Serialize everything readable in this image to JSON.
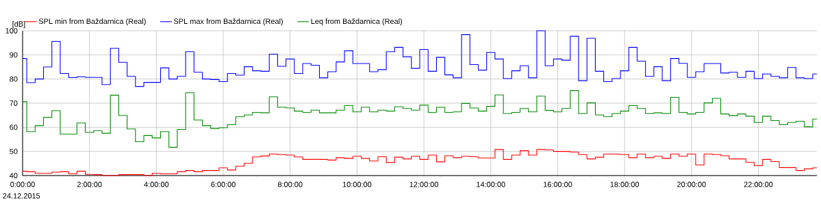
{
  "chart_data": {
    "type": "step",
    "ylabel": "[dB]",
    "annotations": [
      "24.12.2015"
    ],
    "x": [
      0,
      0.25,
      0.5,
      0.75,
      1,
      1.25,
      1.5,
      1.75,
      2,
      2.25,
      2.5,
      2.75,
      3,
      3.25,
      3.5,
      3.75,
      4,
      4.25,
      4.5,
      4.75,
      5,
      5.25,
      5.5,
      5.75,
      6,
      6.25,
      6.5,
      6.75,
      7,
      7.25,
      7.5,
      7.75,
      8,
      8.25,
      8.5,
      8.75,
      9,
      9.25,
      9.5,
      9.75,
      10,
      10.25,
      10.5,
      10.75,
      11,
      11.25,
      11.5,
      11.75,
      12,
      12.25,
      12.5,
      12.75,
      13,
      13.25,
      13.5,
      13.75,
      14,
      14.25,
      14.5,
      14.75,
      15,
      15.25,
      15.5,
      15.75,
      16,
      16.25,
      16.5,
      16.75,
      17,
      17.25,
      17.5,
      17.75,
      18,
      18.25,
      18.5,
      18.75,
      19,
      19.25,
      19.5,
      19.75,
      20,
      20.25,
      20.5,
      20.75,
      21,
      21.25,
      21.5,
      21.75,
      22,
      22.25,
      22.5,
      22.75,
      23,
      23.25,
      23.5,
      23.75
    ],
    "series": [
      {
        "name": "SPL min from Baždarnica (Real)",
        "color": "#ff0000",
        "values": [
          41.8,
          41.6,
          40.9,
          40.9,
          41.4,
          41.6,
          40.7,
          41.8,
          40.5,
          40.4,
          40.0,
          40.0,
          40.4,
          40.4,
          40.4,
          40.0,
          40.9,
          40.7,
          40.7,
          41.6,
          42.1,
          41.6,
          42.1,
          42.1,
          43.2,
          42.3,
          43.9,
          45.1,
          47.7,
          48.1,
          48.9,
          48.7,
          48.5,
          47.7,
          46.7,
          46.7,
          46.7,
          46.4,
          47.4,
          47.1,
          48.0,
          47.1,
          46.0,
          47.8,
          45.4,
          47.6,
          46.9,
          48.0,
          46.7,
          48.5,
          45.7,
          48.2,
          47.4,
          48.0,
          47.8,
          47.3,
          47.3,
          50.8,
          46.7,
          48.5,
          50.3,
          48.5,
          50.8,
          50.6,
          50.0,
          50.0,
          49.7,
          48.7,
          46.9,
          47.6,
          48.9,
          48.9,
          48.7,
          47.4,
          48.9,
          47.4,
          48.0,
          47.1,
          48.9,
          48.0,
          48.9,
          44.4,
          48.9,
          48.7,
          48.2,
          46.9,
          46.9,
          45.5,
          44.1,
          46.7,
          45.8,
          43.3,
          43.3,
          42.1,
          42.8,
          43.2
        ]
      },
      {
        "name": "SPL max from Baždarnica (Real)",
        "color": "#0000ff",
        "values": [
          88.5,
          78.5,
          80,
          85,
          95.6,
          82.3,
          80.6,
          80.9,
          80.7,
          80.7,
          77.7,
          92.7,
          86.9,
          81.1,
          76.9,
          78.6,
          78.6,
          84.6,
          80,
          81.1,
          91.3,
          82.8,
          80,
          79.8,
          78.9,
          82.3,
          81.6,
          85.1,
          83.4,
          83.2,
          90.3,
          85.3,
          88.3,
          82.3,
          86.4,
          85.7,
          80.5,
          83.0,
          87.1,
          91.7,
          86.4,
          86.4,
          83.0,
          83.9,
          91.3,
          93.1,
          89.2,
          84.4,
          92.2,
          83.2,
          89.0,
          81.7,
          80.5,
          98.4,
          86.0,
          83.7,
          91.0,
          88.3,
          80.2,
          83.4,
          85.5,
          80.5,
          100,
          85.5,
          88.3,
          87.8,
          97.7,
          79.3,
          96.9,
          83.2,
          78.9,
          80.2,
          83.4,
          93.1,
          87.4,
          81.1,
          85.1,
          79.3,
          88.5,
          86.5,
          80.7,
          83.0,
          86.4,
          86.4,
          82.5,
          82.8,
          80.7,
          83.2,
          80.2,
          82.1,
          81.1,
          80.5,
          84.8,
          80.5,
          80.2,
          82.1
        ]
      },
      {
        "name": "Leq from Baždarnica (Real)",
        "color": "#008a00",
        "values": [
          70.6,
          58.2,
          60.7,
          64.1,
          66.9,
          57.2,
          57.2,
          61.8,
          57.9,
          58.6,
          57.5,
          73.3,
          64.9,
          59.3,
          54.0,
          56.6,
          55.6,
          58.2,
          51.7,
          59.1,
          74.3,
          63.0,
          60.7,
          59.5,
          59.8,
          61.1,
          64.4,
          65.1,
          66.2,
          66.0,
          72.6,
          68.3,
          68.0,
          66.7,
          66.2,
          67.1,
          66.0,
          66.0,
          67.1,
          69.0,
          66.4,
          68.3,
          66.4,
          67.1,
          66.7,
          68.5,
          67.8,
          67.1,
          69.2,
          66.2,
          68.3,
          66.2,
          66.4,
          69.9,
          68.0,
          66.7,
          68.7,
          73.4,
          65.7,
          66.2,
          67.8,
          66.4,
          72.9,
          67.0,
          66.4,
          67.8,
          75.2,
          65.7,
          70.1,
          65.1,
          64.4,
          65.7,
          66.7,
          69.0,
          67.8,
          65.7,
          66.0,
          65.7,
          72.4,
          66.2,
          65.5,
          66.2,
          70.1,
          72.0,
          65.5,
          64.8,
          65.5,
          64.6,
          62.0,
          64.6,
          62.8,
          61.1,
          62.0,
          62.5,
          60.2,
          63.4
        ]
      }
    ],
    "xlim": [
      0,
      23.75
    ],
    "ylim": [
      40,
      100
    ],
    "xticks": [
      {
        "value": 0,
        "label": "0:00:00"
      },
      {
        "value": 2,
        "label": "2:00:00"
      },
      {
        "value": 4,
        "label": "4:00:00"
      },
      {
        "value": 6,
        "label": "6:00:00"
      },
      {
        "value": 8,
        "label": "8:00:00"
      },
      {
        "value": 10,
        "label": "10:00:00"
      },
      {
        "value": 12,
        "label": "12:00:00"
      },
      {
        "value": 14,
        "label": "14:00:00"
      },
      {
        "value": 16,
        "label": "16:00:00"
      },
      {
        "value": 18,
        "label": "18:00:00"
      },
      {
        "value": 20,
        "label": "20:00:00"
      },
      {
        "value": 22,
        "label": "22:00:00"
      }
    ],
    "yticks": [
      40,
      50,
      60,
      70,
      80,
      90,
      100
    ],
    "grid": true,
    "legend": "top",
    "line_style": "solid"
  }
}
